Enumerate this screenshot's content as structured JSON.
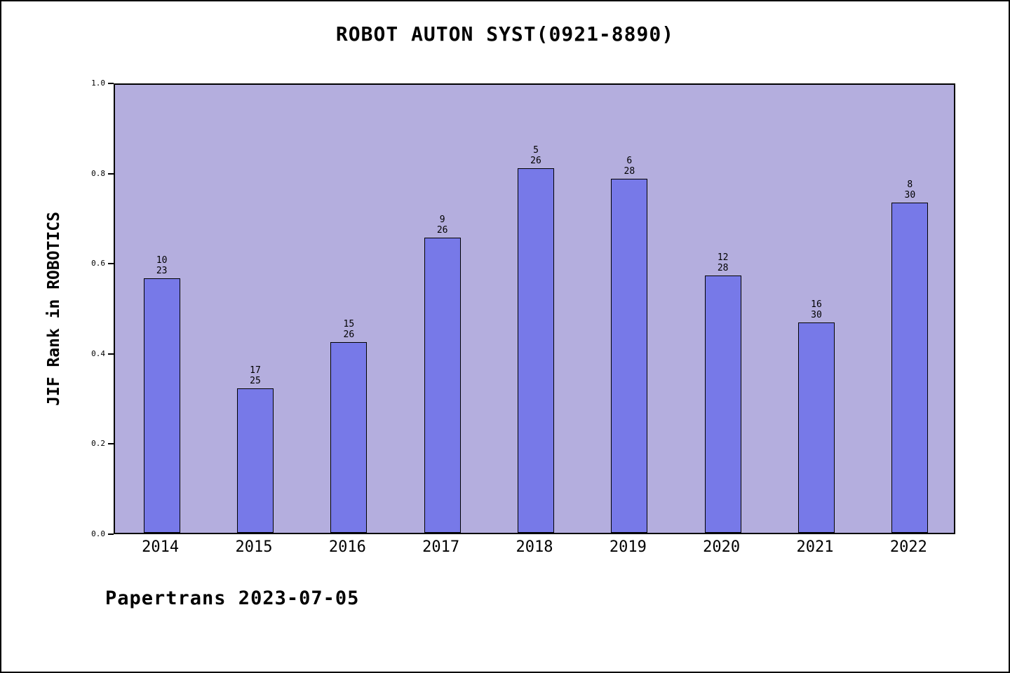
{
  "colors": {
    "plot_bg": "#b4aede",
    "bar_fill": "#7779e8",
    "bar_edge": "#000000",
    "text": "#000000"
  },
  "footer": {
    "text": "Papertrans 2023-07-05"
  },
  "chart_data": {
    "type": "bar",
    "title": "ROBOT AUTON SYST(0921-8890)",
    "ylabel": "JIF Rank in ROBOTICS",
    "xlabel": "",
    "categories": [
      "2014",
      "2015",
      "2016",
      "2017",
      "2018",
      "2019",
      "2020",
      "2021",
      "2022"
    ],
    "values": [
      0.565,
      0.32,
      0.423,
      0.654,
      0.808,
      0.786,
      0.571,
      0.467,
      0.733
    ],
    "bar_labels": [
      {
        "rank": "10",
        "total": "23"
      },
      {
        "rank": "17",
        "total": "25"
      },
      {
        "rank": "15",
        "total": "26"
      },
      {
        "rank": "9",
        "total": "26"
      },
      {
        "rank": "5",
        "total": "26"
      },
      {
        "rank": "6",
        "total": "28"
      },
      {
        "rank": "12",
        "total": "28"
      },
      {
        "rank": "16",
        "total": "30"
      },
      {
        "rank": "8",
        "total": "30"
      }
    ],
    "ylim": [
      0.0,
      1.0
    ],
    "yticks": [
      0.0,
      0.2,
      0.4,
      0.6,
      0.8,
      1.0
    ],
    "grid": false,
    "legend": "none",
    "annotation": "Papertrans 2023-07-05"
  }
}
